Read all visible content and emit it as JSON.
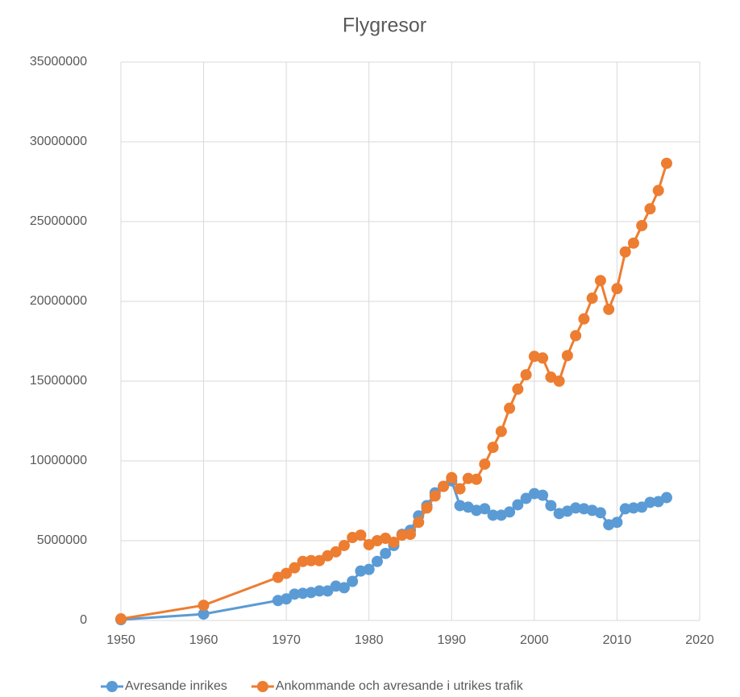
{
  "chart_data": {
    "type": "line",
    "title": "Flygresor",
    "x": [
      1950,
      1960,
      1969,
      1970,
      1971,
      1972,
      1973,
      1974,
      1975,
      1976,
      1977,
      1978,
      1979,
      1980,
      1981,
      1982,
      1983,
      1984,
      1985,
      1986,
      1987,
      1988,
      1989,
      1990,
      1991,
      1992,
      1993,
      1994,
      1995,
      1996,
      1997,
      1998,
      1999,
      2000,
      2001,
      2002,
      2003,
      2004,
      2005,
      2006,
      2007,
      2008,
      2009,
      2010,
      2011,
      2012,
      2013,
      2014,
      2015,
      2016
    ],
    "series": [
      {
        "name": "Avresande inrikes",
        "color": "#5b9bd5",
        "values": [
          50000,
          400000,
          1250000,
          1350000,
          1650000,
          1700000,
          1750000,
          1850000,
          1850000,
          2150000,
          2050000,
          2450000,
          3100000,
          3200000,
          3700000,
          4200000,
          4700000,
          5400000,
          5650000,
          6550000,
          7200000,
          8000000,
          8400000,
          8750000,
          7200000,
          7100000,
          6900000,
          7000000,
          6600000,
          6600000,
          6800000,
          7250000,
          7650000,
          7950000,
          7850000,
          7200000,
          6700000,
          6850000,
          7050000,
          7000000,
          6900000,
          6750000,
          6000000,
          6150000,
          7000000,
          7050000,
          7100000,
          7400000,
          7450000,
          7700000
        ]
      },
      {
        "name": "Ankommande och avresande i utrikes trafik",
        "color": "#ed7d31",
        "values": [
          100000,
          950000,
          2700000,
          2950000,
          3300000,
          3700000,
          3750000,
          3750000,
          4050000,
          4300000,
          4700000,
          5200000,
          5350000,
          4750000,
          5000000,
          5150000,
          4900000,
          5350000,
          5400000,
          6150000,
          7050000,
          7800000,
          8400000,
          8950000,
          8250000,
          8900000,
          8850000,
          9800000,
          10850000,
          11850000,
          13300000,
          14500000,
          15400000,
          16550000,
          16450000,
          15250000,
          15000000,
          16600000,
          17850000,
          18900000,
          20200000,
          21300000,
          19500000,
          20800000,
          23100000,
          23650000,
          24750000,
          25800000,
          26950000,
          28650000
        ]
      }
    ],
    "xlim": [
      1950,
      2020
    ],
    "xticks": [
      1950,
      1960,
      1970,
      1980,
      1990,
      2000,
      2010,
      2020
    ],
    "ylim": [
      0,
      35000000
    ],
    "yticks": [
      0,
      5000000,
      10000000,
      15000000,
      20000000,
      25000000,
      30000000,
      35000000
    ],
    "grid": true,
    "markers": true,
    "legend": "bottom"
  }
}
